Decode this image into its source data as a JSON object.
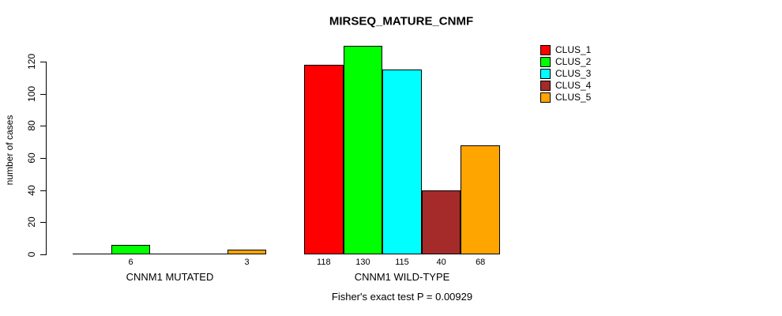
{
  "chart_data": {
    "type": "bar",
    "title": "MIRSEQ_MATURE_CNMF",
    "ylabel": "number of cases",
    "xlabel": "",
    "ylim": [
      0,
      120
    ],
    "yticks": [
      0,
      20,
      40,
      60,
      80,
      100,
      120
    ],
    "grid": false,
    "legend_position": "top-right",
    "legend": [
      "CLUS_1",
      "CLUS_2",
      "CLUS_3",
      "CLUS_4",
      "CLUS_5"
    ],
    "series_colors": [
      "#FF0000",
      "#00FF00",
      "#00FFFF",
      "#A52A2A",
      "#FFA500"
    ],
    "categories": [
      "CNNM1 MUTATED",
      "CNNM1 WILD-TYPE"
    ],
    "series": [
      {
        "name": "CLUS_1",
        "values": [
          0,
          118
        ]
      },
      {
        "name": "CLUS_2",
        "values": [
          6,
          130
        ]
      },
      {
        "name": "CLUS_3",
        "values": [
          0,
          115
        ]
      },
      {
        "name": "CLUS_4",
        "values": [
          0,
          40
        ]
      },
      {
        "name": "CLUS_5",
        "values": [
          3,
          68
        ]
      }
    ],
    "bar_value_labels": [
      [
        "",
        "6",
        "",
        "",
        "3"
      ],
      [
        "118",
        "130",
        "115",
        "40",
        "68"
      ]
    ],
    "footnote": "Fisher's exact test P = 0.00929"
  }
}
